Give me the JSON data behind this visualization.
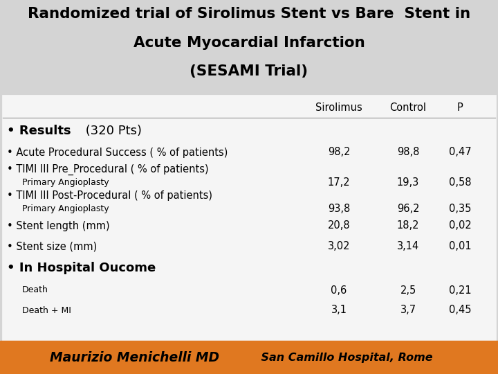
{
  "title_line1": "Randomized trial of Sirolimus Stent vs Bare  Stent in",
  "title_line2": "Acute Myocardial Infarction",
  "title_line3": "(SESAMI Trial)",
  "title_bg": "#d4d4d4",
  "title_color": "#000000",
  "table_bg": "#f5f5f5",
  "table_border": "#cc7722",
  "footer_bg": "#e07820",
  "footer_text1": "Maurizio Menichelli MD",
  "footer_text2": "    San Camillo Hospital, Rome",
  "footer_color": "#000000",
  "col_header_sirolimus": "Sirolimus",
  "col_header_control": "Control",
  "col_header_p": "P",
  "rows": [
    {
      "label_bold": "• Results",
      "label_normal": " (320 Pts)",
      "sub": false,
      "indent": 0,
      "sirolimus": "",
      "control": "",
      "p": "",
      "section_header": true,
      "has_bullet": true
    },
    {
      "label_bold": "",
      "label_normal": "• Acute Procedural Success ( % of patients)",
      "sub": false,
      "indent": 0,
      "sirolimus": "98,2",
      "control": "98,8",
      "p": "0,47",
      "section_header": false,
      "has_bullet": false
    },
    {
      "label_bold": "",
      "label_normal": "• TIMI III Pre_Procedural ( % of patients)",
      "sub": false,
      "indent": 0,
      "sirolimus": "",
      "control": "",
      "p": "",
      "section_header": false,
      "has_bullet": false
    },
    {
      "label_bold": "",
      "label_normal": "Primary Angioplasty",
      "sub": true,
      "indent": 1,
      "sirolimus": "17,2",
      "control": "19,3",
      "p": "0,58",
      "section_header": false,
      "has_bullet": false
    },
    {
      "label_bold": "",
      "label_normal": "• TIMI III Post-Procedural ( % of patients)",
      "sub": false,
      "indent": 0,
      "sirolimus": "",
      "control": "",
      "p": "",
      "section_header": false,
      "has_bullet": false
    },
    {
      "label_bold": "",
      "label_normal": "Primary Angioplasty",
      "sub": true,
      "indent": 1,
      "sirolimus": "93,8",
      "control": "96,2",
      "p": "0,35",
      "section_header": false,
      "has_bullet": false
    },
    {
      "label_bold": "",
      "label_normal": "• Stent length (mm)",
      "sub": false,
      "indent": 0,
      "sirolimus": "20,8",
      "control": "18,2",
      "p": "0,02",
      "section_header": false,
      "has_bullet": false
    },
    {
      "label_bold": "",
      "label_normal": "• Stent size (mm)",
      "sub": false,
      "indent": 0,
      "sirolimus": "3,02",
      "control": "3,14",
      "p": "0,01",
      "section_header": false,
      "has_bullet": false
    },
    {
      "label_bold": "• In Hospital Oucome",
      "label_normal": "",
      "sub": false,
      "indent": 0,
      "sirolimus": "",
      "control": "",
      "p": "",
      "section_header": true,
      "has_bullet": true
    },
    {
      "label_bold": "",
      "label_normal": "Death",
      "sub": true,
      "indent": 1,
      "sirolimus": "0,6",
      "control": "2,5",
      "p": "0,21",
      "section_header": false,
      "has_bullet": false
    },
    {
      "label_bold": "",
      "label_normal": "Death + MI",
      "sub": true,
      "indent": 1,
      "sirolimus": "3,1",
      "control": "3,7",
      "p": "0,45",
      "section_header": false,
      "has_bullet": false
    }
  ]
}
